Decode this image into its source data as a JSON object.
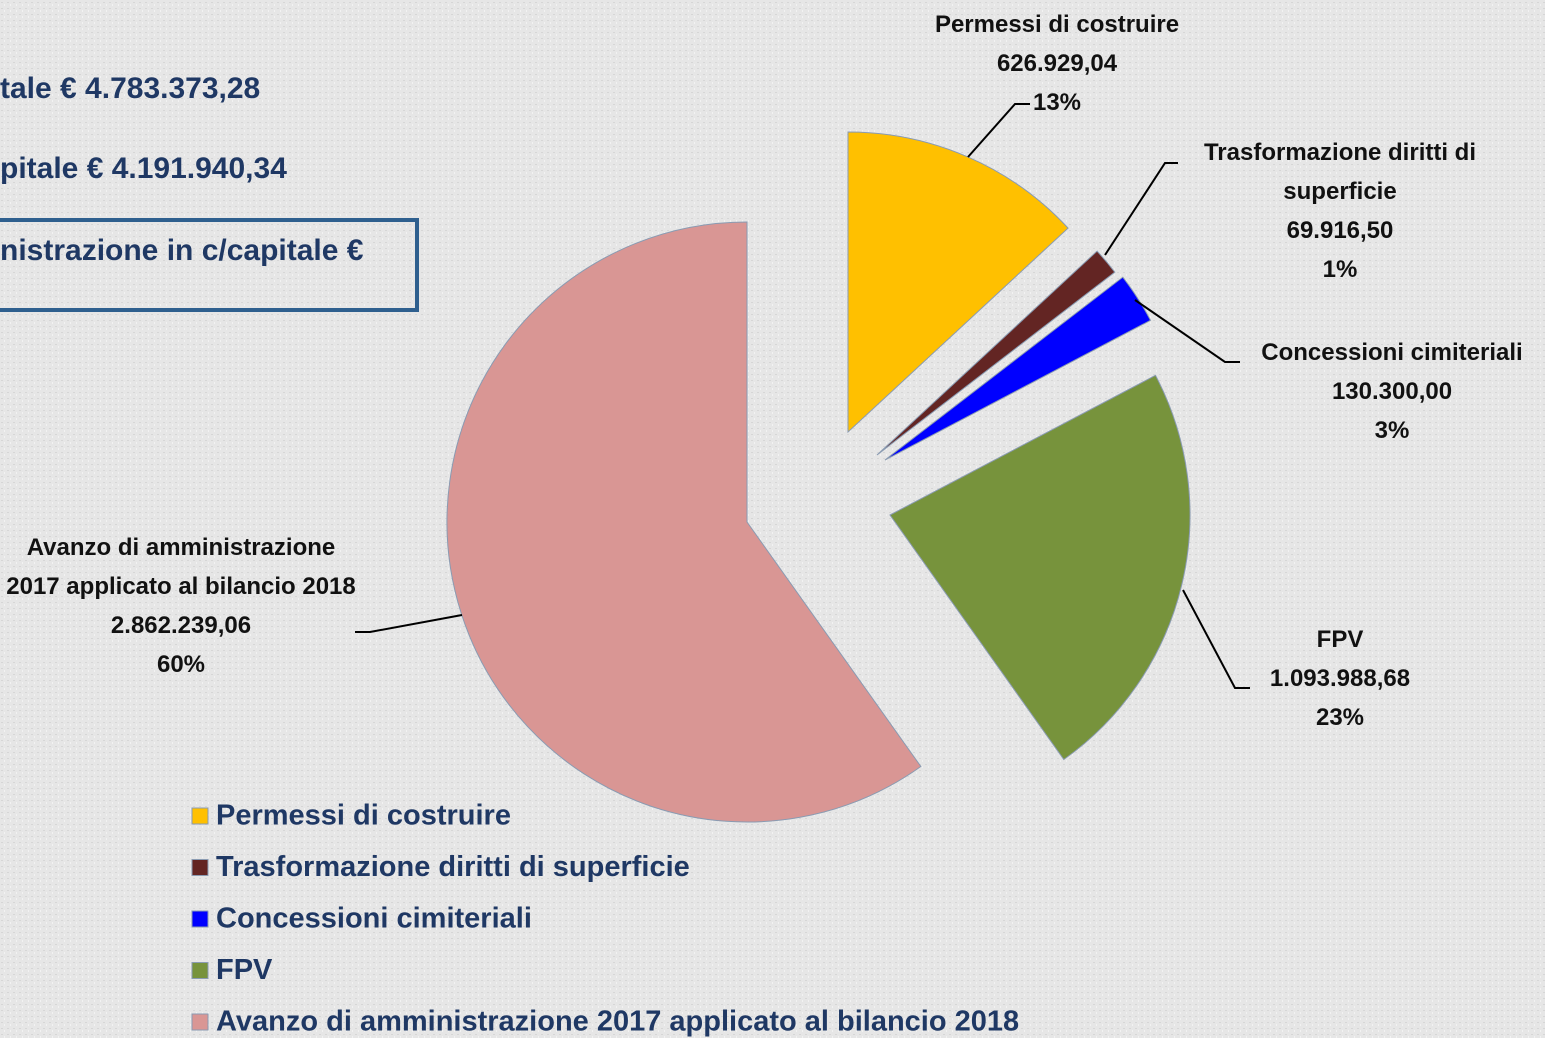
{
  "annotations": [
    "tale € 4.783.373,28",
    "pitale € 4.191.940,34",
    "nistrazione in c/capitale €"
  ],
  "chart_data": {
    "type": "pie",
    "categories": [
      "Permessi di costruire",
      "Trasformazione diritti di superficie",
      "Concessioni cimiteriali",
      "FPV",
      "Avanzo di amministrazione 2017 applicato al bilancio 2018"
    ],
    "values": [
      626929.04,
      69916.5,
      130300.0,
      1093988.68,
      2862239.06
    ],
    "value_labels": [
      "626.929,04",
      "69.916,50",
      "130.300,00",
      "1.093.988,68",
      "2.862.239,06"
    ],
    "percents": [
      13,
      1,
      3,
      23,
      60
    ],
    "percent_labels": [
      "13%",
      "1%",
      "3%",
      "23%",
      "60%"
    ],
    "colors": [
      "#ffc000",
      "#632523",
      "#0000ff",
      "#77933c",
      "#d99694"
    ],
    "legend": "bottom"
  }
}
